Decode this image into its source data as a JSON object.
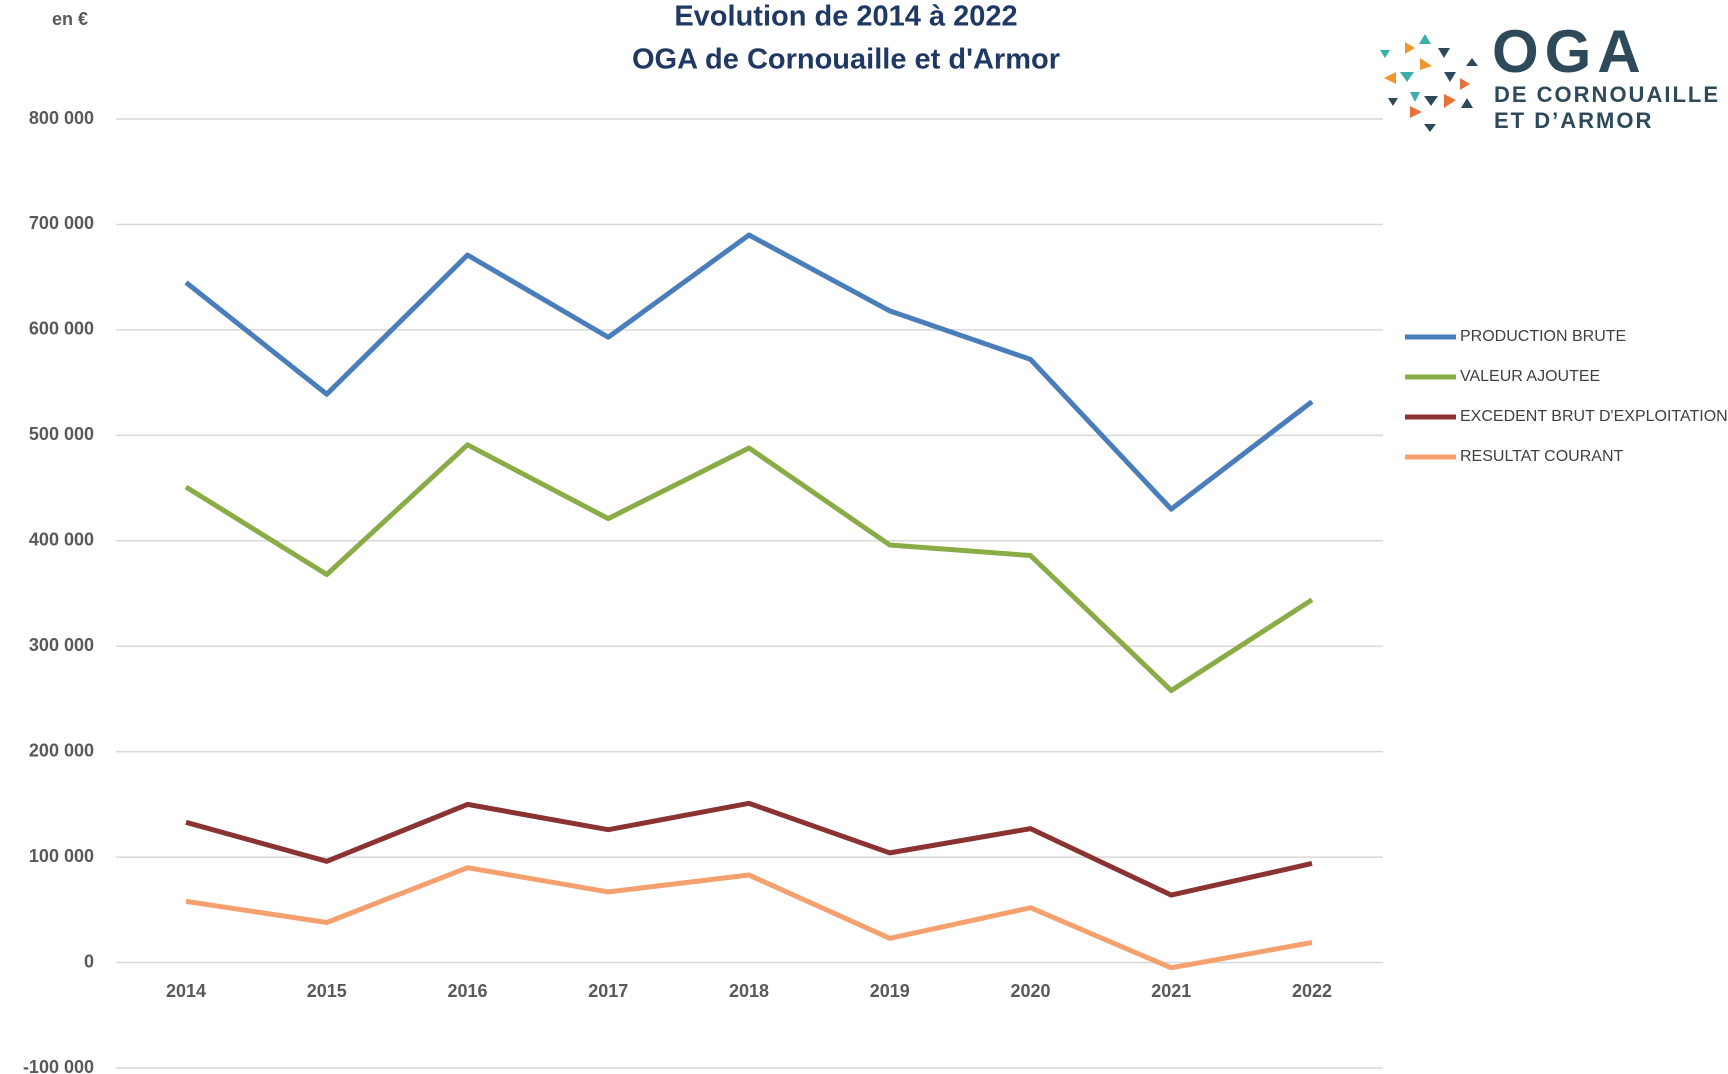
{
  "chart_data": {
    "type": "line",
    "title": "Evolution  de 2014 à 2022",
    "subtitle": "OGA de Cornouaille et d'Armor",
    "y_axis_label": "en €",
    "categories": [
      "2014",
      "2015",
      "2016",
      "2017",
      "2018",
      "2019",
      "2020",
      "2021",
      "2022"
    ],
    "series": [
      {
        "name": "PRODUCTION BRUTE",
        "color": "#4a7ebb",
        "values": [
          645000,
          539000,
          671000,
          593000,
          690000,
          618000,
          572000,
          430000,
          532000
        ]
      },
      {
        "name": "VALEUR AJOUTEE",
        "color": "#8aac46",
        "values": [
          451000,
          368000,
          491000,
          421000,
          488000,
          396000,
          386000,
          258000,
          344000
        ]
      },
      {
        "name": "EXCEDENT BRUT D'EXPLOITATION",
        "color": "#8b3232",
        "values": [
          133000,
          96000,
          150000,
          126000,
          151000,
          104000,
          127000,
          64000,
          94000
        ]
      },
      {
        "name": "RESULTAT COURANT",
        "color": "#f4a16f",
        "values": [
          58000,
          38000,
          90000,
          67000,
          83000,
          23000,
          52000,
          -5000,
          19000
        ]
      }
    ],
    "ylim": [
      -100000,
      800000
    ],
    "yticks": [
      {
        "value": -100000,
        "label": "-100 000"
      },
      0,
      {
        "value": 100000,
        "label": "100 000"
      },
      {
        "value": 200000,
        "label": "200 000"
      },
      {
        "value": 300000,
        "label": "300 000"
      },
      {
        "value": 400000,
        "label": "400 000"
      },
      {
        "value": 500000,
        "label": "500 000"
      },
      {
        "value": 600000,
        "label": "600 000"
      },
      {
        "value": 700000,
        "label": "700 000"
      },
      {
        "value": 800000,
        "label": "800 000"
      }
    ],
    "grid": true,
    "legend": "right"
  },
  "logo": {
    "name": "OGA",
    "line1": "DE CORNOUAILLE",
    "line2": "ET D’ARMOR"
  }
}
